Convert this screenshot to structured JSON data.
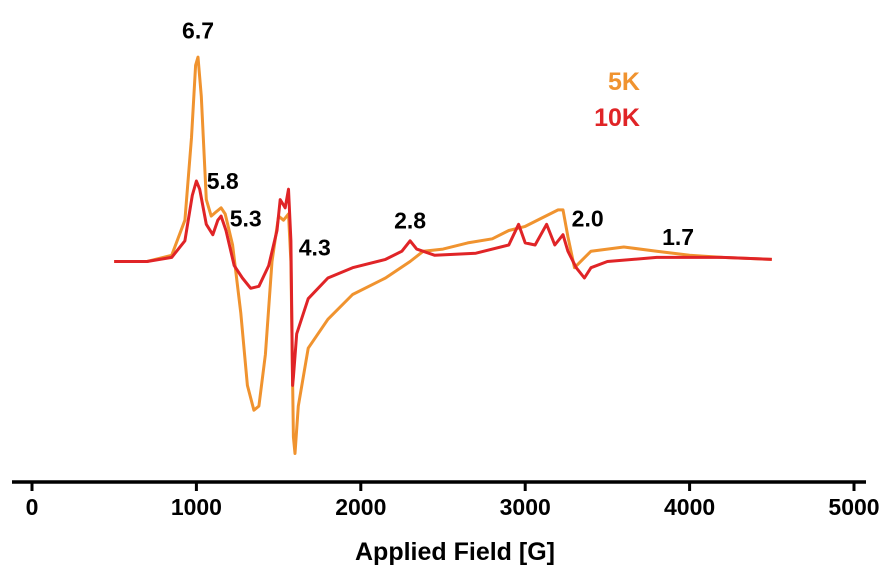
{
  "chart_data": {
    "type": "line",
    "title": "",
    "xlabel": "Applied Field [G]",
    "ylabel": "",
    "xlim": [
      0,
      5000
    ],
    "ylim": [
      -1.0,
      1.0
    ],
    "x_ticks": [
      0,
      1000,
      2000,
      3000,
      4000,
      5000
    ],
    "x_tick_labels": [
      "0",
      "1000",
      "2000",
      "3000",
      "4000",
      "5000"
    ],
    "grid": false,
    "legend": "top-right",
    "series": [
      {
        "name": "5K",
        "color": "#f0932f",
        "points": [
          [
            500,
            0.0
          ],
          [
            700,
            0.0
          ],
          [
            850,
            0.03
          ],
          [
            930,
            0.2
          ],
          [
            970,
            0.6
          ],
          [
            995,
            0.95
          ],
          [
            1010,
            0.99
          ],
          [
            1030,
            0.8
          ],
          [
            1060,
            0.3
          ],
          [
            1090,
            0.22
          ],
          [
            1120,
            0.24
          ],
          [
            1150,
            0.26
          ],
          [
            1175,
            0.23
          ],
          [
            1220,
            0.08
          ],
          [
            1270,
            -0.25
          ],
          [
            1310,
            -0.6
          ],
          [
            1350,
            -0.72
          ],
          [
            1380,
            -0.7
          ],
          [
            1420,
            -0.45
          ],
          [
            1460,
            0.0
          ],
          [
            1500,
            0.22
          ],
          [
            1530,
            0.2
          ],
          [
            1560,
            0.23
          ],
          [
            1575,
            0.0
          ],
          [
            1590,
            -0.85
          ],
          [
            1600,
            -0.93
          ],
          [
            1620,
            -0.7
          ],
          [
            1680,
            -0.42
          ],
          [
            1800,
            -0.28
          ],
          [
            1950,
            -0.16
          ],
          [
            2150,
            -0.08
          ],
          [
            2300,
            0.0
          ],
          [
            2380,
            0.05
          ],
          [
            2500,
            0.06
          ],
          [
            2650,
            0.09
          ],
          [
            2800,
            0.11
          ],
          [
            2900,
            0.15
          ],
          [
            3000,
            0.17
          ],
          [
            3100,
            0.21
          ],
          [
            3200,
            0.25
          ],
          [
            3230,
            0.25
          ],
          [
            3260,
            0.12
          ],
          [
            3300,
            -0.03
          ],
          [
            3350,
            0.01
          ],
          [
            3400,
            0.05
          ],
          [
            3600,
            0.07
          ],
          [
            3800,
            0.05
          ],
          [
            4000,
            0.03
          ],
          [
            4200,
            0.02
          ],
          [
            4500,
            0.01
          ]
        ]
      },
      {
        "name": "10K",
        "color": "#e02427",
        "points": [
          [
            500,
            0.0
          ],
          [
            700,
            0.0
          ],
          [
            850,
            0.02
          ],
          [
            930,
            0.1
          ],
          [
            975,
            0.32
          ],
          [
            1000,
            0.39
          ],
          [
            1020,
            0.35
          ],
          [
            1060,
            0.18
          ],
          [
            1100,
            0.13
          ],
          [
            1130,
            0.2
          ],
          [
            1150,
            0.22
          ],
          [
            1180,
            0.15
          ],
          [
            1230,
            -0.02
          ],
          [
            1280,
            -0.08
          ],
          [
            1330,
            -0.13
          ],
          [
            1380,
            -0.12
          ],
          [
            1440,
            -0.02
          ],
          [
            1490,
            0.15
          ],
          [
            1510,
            0.3
          ],
          [
            1540,
            0.26
          ],
          [
            1560,
            0.35
          ],
          [
            1575,
            0.1
          ],
          [
            1585,
            -0.6
          ],
          [
            1590,
            -0.56
          ],
          [
            1610,
            -0.35
          ],
          [
            1680,
            -0.18
          ],
          [
            1800,
            -0.08
          ],
          [
            1950,
            -0.03
          ],
          [
            2150,
            0.01
          ],
          [
            2250,
            0.05
          ],
          [
            2300,
            0.1
          ],
          [
            2340,
            0.06
          ],
          [
            2450,
            0.03
          ],
          [
            2700,
            0.04
          ],
          [
            2900,
            0.08
          ],
          [
            2960,
            0.18
          ],
          [
            3000,
            0.09
          ],
          [
            3060,
            0.08
          ],
          [
            3130,
            0.18
          ],
          [
            3180,
            0.08
          ],
          [
            3230,
            0.13
          ],
          [
            3260,
            0.05
          ],
          [
            3310,
            -0.03
          ],
          [
            3360,
            -0.08
          ],
          [
            3400,
            -0.03
          ],
          [
            3500,
            0.0
          ],
          [
            3800,
            0.02
          ],
          [
            4200,
            0.02
          ],
          [
            4500,
            0.01
          ]
        ]
      }
    ],
    "annotations": [
      {
        "text": "6.7",
        "x": 1010,
        "y": 1.08
      },
      {
        "text": "5.8",
        "x": 1160,
        "y": 0.35
      },
      {
        "text": "5.3",
        "x": 1300,
        "y": 0.17
      },
      {
        "text": "4.3",
        "x": 1720,
        "y": 0.03
      },
      {
        "text": "2.8",
        "x": 2300,
        "y": 0.16
      },
      {
        "text": "2.0",
        "x": 3380,
        "y": 0.17
      },
      {
        "text": "1.7",
        "x": 3930,
        "y": 0.08
      }
    ]
  }
}
